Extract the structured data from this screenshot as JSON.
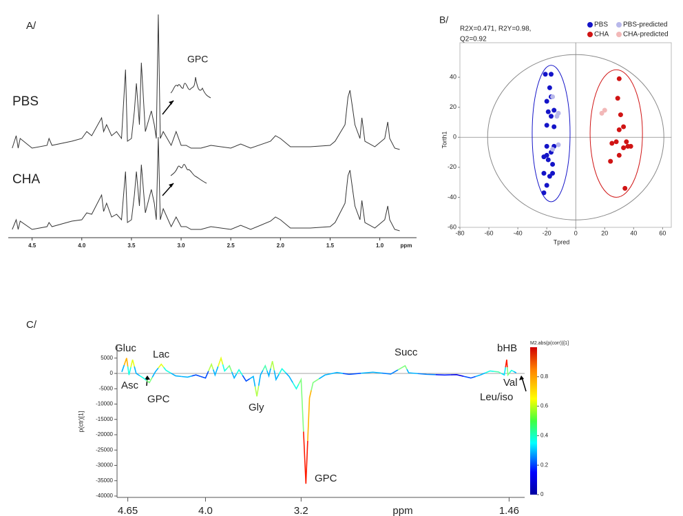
{
  "chart_data": [
    {
      "type": "line",
      "panel_label": "A/",
      "xlabel": "ppm",
      "annotation": "GPC",
      "xlim": [
        4.74,
        0.63
      ],
      "xticks": [
        4.5,
        {
          "value": 4,
          "label": "4.0"
        },
        3.5,
        {
          "value": 3,
          "label": "3.0"
        },
        2.5,
        {
          "value": 2,
          "label": "2.0"
        },
        1.5,
        {
          "value": 1,
          "label": "1.0"
        }
      ],
      "x": [
        4.7,
        4.66,
        4.64,
        4.62,
        4.5,
        4.35,
        4.33,
        4.3,
        4.1,
        4.0,
        3.95,
        3.9,
        3.8,
        3.78,
        3.75,
        3.7,
        3.65,
        3.6,
        3.56,
        3.54,
        3.5,
        3.47,
        3.45,
        3.42,
        3.4,
        3.36,
        3.3,
        3.27,
        3.25,
        3.23,
        3.21,
        3.18,
        3.1,
        3.05,
        3.0,
        2.95,
        2.9,
        2.8,
        2.7,
        2.5,
        2.4,
        2.3,
        2.1,
        2.05,
        2.0,
        1.9,
        1.7,
        1.5,
        1.45,
        1.35,
        1.32,
        1.3,
        1.27,
        1.25,
        1.2,
        1.18,
        1.15,
        1.05,
        0.95,
        0.92,
        0.9,
        0.85,
        0.8
      ],
      "series": [
        {
          "name": "PBS",
          "color": "#333333",
          "values": [
            3,
            12,
            3,
            10,
            3,
            5,
            10,
            5,
            8,
            10,
            15,
            12,
            25,
            15,
            20,
            12,
            15,
            10,
            60,
            8,
            10,
            30,
            50,
            20,
            65,
            15,
            30,
            20,
            10,
            100,
            10,
            15,
            5,
            15,
            5,
            5,
            3,
            3,
            5,
            3,
            6,
            3,
            8,
            12,
            10,
            4,
            4,
            5,
            8,
            20,
            40,
            45,
            30,
            20,
            10,
            25,
            8,
            4,
            10,
            22,
            10,
            3,
            2
          ]
        },
        {
          "name": "CHA",
          "color": "#333333",
          "values": [
            3,
            10,
            3,
            9,
            3,
            5,
            8,
            5,
            9,
            10,
            15,
            14,
            28,
            16,
            22,
            12,
            14,
            10,
            45,
            8,
            10,
            28,
            45,
            20,
            50,
            15,
            32,
            22,
            10,
            70,
            10,
            18,
            5,
            12,
            5,
            5,
            3,
            3,
            5,
            3,
            6,
            3,
            9,
            12,
            10,
            4,
            4,
            5,
            8,
            22,
            42,
            46,
            30,
            20,
            10,
            24,
            8,
            4,
            10,
            20,
            10,
            3,
            2
          ]
        }
      ]
    },
    {
      "type": "scatter",
      "panel_label": "B/",
      "xlabel": "Tpred",
      "ylabel": "Torth1",
      "annotation": [
        "R2X=0.471, R2Y=0.98,",
        "Q2=0.92"
      ],
      "legend": "top-right",
      "xlim": [
        -80,
        66
      ],
      "ylim": [
        -60,
        63
      ],
      "xticks": [
        -80,
        -60,
        -40,
        -20,
        0,
        20,
        40,
        60
      ],
      "yticks": [
        -60,
        -40,
        -20,
        0,
        20,
        40
      ],
      "series": [
        {
          "name": "PBS",
          "color": "#1414c8",
          "x": [
            -17,
            -21,
            -18,
            -17,
            -20,
            -15,
            -19,
            -17,
            -20,
            -15,
            -20,
            -15,
            -22,
            -20,
            -17,
            -19,
            -22,
            -18,
            -16,
            -20,
            -22,
            -16
          ],
          "y": [
            42,
            42,
            33,
            27,
            24,
            18,
            17,
            14,
            8,
            7,
            -6,
            -6,
            -13,
            -12,
            -10,
            -15,
            -24,
            -26,
            -24,
            -32,
            -37,
            -18
          ]
        },
        {
          "name": "PBS-predicted",
          "color": "#b8b8ea",
          "x": [
            -16,
            -12,
            -13,
            -16,
            -12
          ],
          "y": [
            27,
            16,
            14,
            -8,
            -5
          ]
        },
        {
          "name": "CHA",
          "color": "#d01414",
          "x": [
            30,
            29,
            31,
            33,
            30,
            28,
            25,
            35,
            33,
            36,
            38,
            30,
            24,
            34
          ],
          "y": [
            39,
            26,
            15,
            7,
            5,
            -3,
            -4,
            -3,
            -7,
            -6,
            -6,
            -12,
            -16,
            -34
          ]
        },
        {
          "name": "CHA-predicted",
          "color": "#f2b8b8",
          "x": [
            20,
            18
          ],
          "y": [
            18,
            16
          ]
        }
      ]
    },
    {
      "type": "line",
      "panel_label": "C/",
      "xlabel": "ppm",
      "ylabel": "p(ctr)[1]",
      "colorbar_title": "M2.abs(p(corr))[1]",
      "clim": [
        0,
        1
      ],
      "cticks": [
        0,
        0.2,
        0.4,
        0.6,
        0.8
      ],
      "annotations": [
        "Gluc",
        "Asc",
        "Lac",
        "GPC",
        "Gly",
        "GPC",
        "Succ",
        "bHB",
        "Val",
        "Leu/iso"
      ],
      "xlim": [
        4.74,
        1.33
      ],
      "ylim": [
        -40000,
        9000
      ],
      "xticks": [
        4.65,
        {
          "value": 4,
          "label": "4.0"
        },
        3.2,
        1.46
      ],
      "yticks": [
        5000,
        0,
        -5000,
        -10000,
        -15000,
        -20000,
        -25000,
        -30000,
        -35000,
        -40000
      ],
      "x": [
        4.7,
        4.66,
        4.64,
        4.61,
        4.58,
        4.52,
        4.47,
        4.42,
        4.37,
        4.33,
        4.25,
        4.15,
        4.08,
        4.0,
        3.95,
        3.92,
        3.87,
        3.84,
        3.8,
        3.76,
        3.72,
        3.66,
        3.6,
        3.57,
        3.54,
        3.5,
        3.47,
        3.44,
        3.41,
        3.36,
        3.3,
        3.24,
        3.2,
        3.16,
        3.13,
        3.1,
        3.0,
        2.9,
        2.8,
        2.6,
        2.45,
        2.33,
        2.3,
        2.15,
        2.0,
        1.9,
        1.78,
        1.7,
        1.62,
        1.55,
        1.5,
        1.48,
        1.47,
        1.44,
        1.4
      ],
      "values": [
        500,
        5000,
        -500,
        4500,
        0,
        -1500,
        -3000,
        500,
        3000,
        1000,
        -800,
        -1200,
        -500,
        -1500,
        3000,
        -500,
        5000,
        800,
        2500,
        -1500,
        1200,
        -2500,
        -1000,
        -7500,
        -500,
        2500,
        -800,
        4000,
        -2000,
        1500,
        -1000,
        -5000,
        -2000,
        -36000,
        -8000,
        -3000,
        -500,
        300,
        -300,
        400,
        -200,
        2500,
        200,
        -300,
        -500,
        -400,
        -1500,
        -500,
        800,
        500,
        -500,
        4500,
        -500,
        1000,
        200
      ],
      "corr": [
        0.3,
        0.7,
        0.4,
        0.6,
        0.3,
        0.4,
        0.5,
        0.3,
        0.6,
        0.4,
        0.3,
        0.3,
        0.2,
        0.2,
        0.55,
        0.3,
        0.6,
        0.4,
        0.5,
        0.3,
        0.4,
        0.2,
        0.3,
        0.55,
        0.3,
        0.45,
        0.3,
        0.55,
        0.3,
        0.4,
        0.3,
        0.4,
        0.5,
        0.85,
        0.7,
        0.5,
        0.3,
        0.3,
        0.2,
        0.3,
        0.25,
        0.5,
        0.3,
        0.25,
        0.15,
        0.1,
        0.2,
        0.3,
        0.4,
        0.45,
        0.35,
        0.85,
        0.5,
        0.4,
        0.3
      ]
    }
  ]
}
